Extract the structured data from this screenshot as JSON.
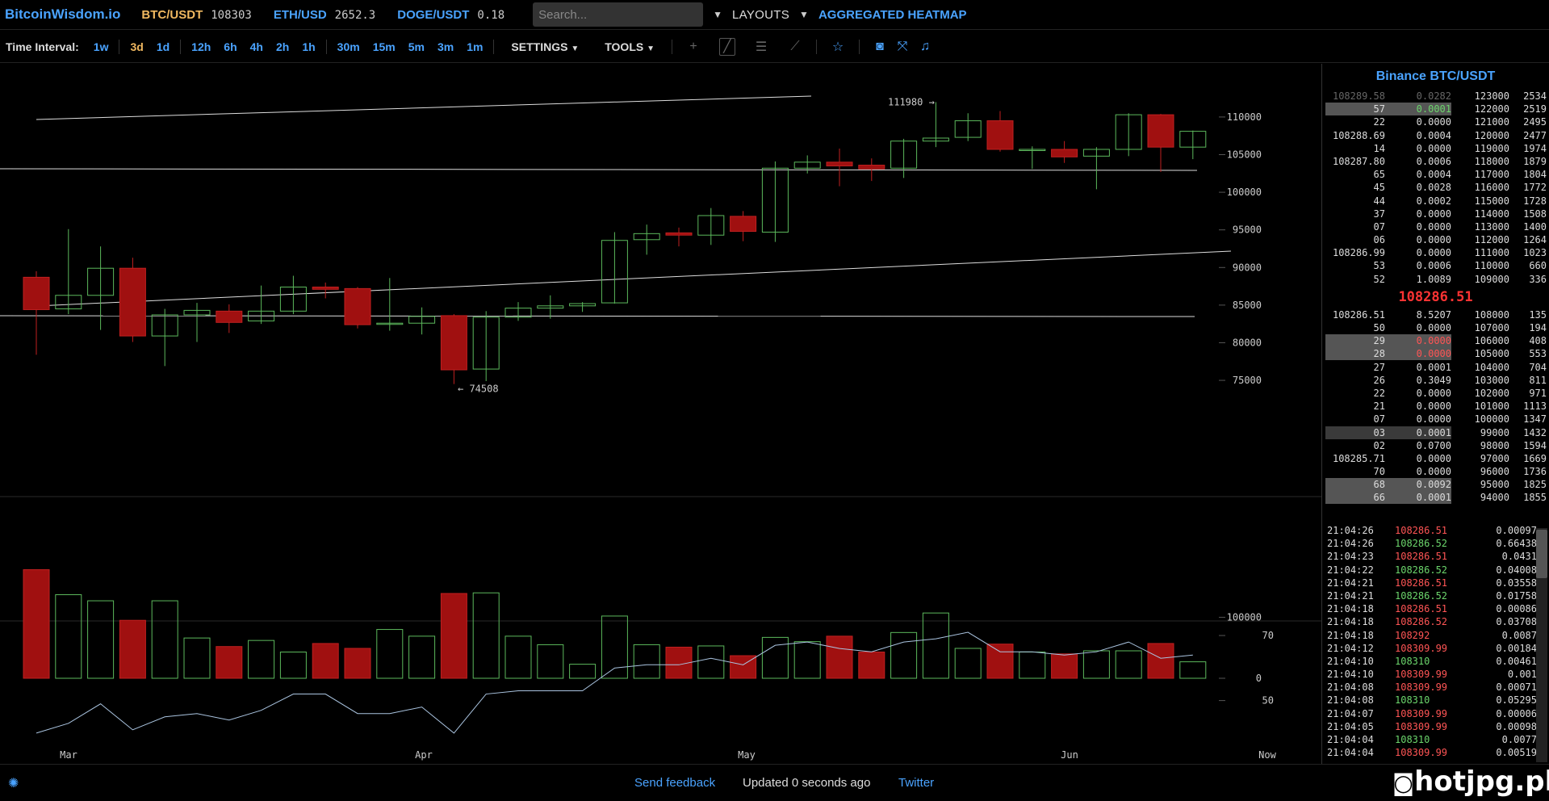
{
  "header": {
    "logo": "BitcoinWisdom.io",
    "tickers": [
      {
        "pair": "BTC/USDT",
        "price": "108303",
        "active": true
      },
      {
        "pair": "ETH/USD",
        "price": "2652.3",
        "active": false
      },
      {
        "pair": "DOGE/USDT",
        "price": "0.18",
        "active": false
      }
    ],
    "search_placeholder": "Search...",
    "layouts_label": "LAYOUTS",
    "heatmap_label": "AGGREGATED HEATMAP"
  },
  "toolbar": {
    "time_interval_label": "Time Interval:",
    "intervals_group1": [
      "1w",
      "3d",
      "1d"
    ],
    "intervals_group2": [
      "12h",
      "6h",
      "4h",
      "2h",
      "1h"
    ],
    "intervals_group3": [
      "30m",
      "15m",
      "5m",
      "3m",
      "1m"
    ],
    "active_interval": "3d",
    "settings_label": "SETTINGS",
    "tools_label": "TOOLS",
    "icons": [
      "crosshair-icon",
      "trendline-icon",
      "horizontal-lines-icon",
      "fan-icon",
      "star-icon",
      "camera-icon",
      "fullscreen-icon",
      "bell-icon"
    ]
  },
  "chart_data": [
    {
      "type": "candlestick",
      "title": "",
      "y_ticks": [
        "110000",
        "105000",
        "100000",
        "95000",
        "90000",
        "85000",
        "80000",
        "75000"
      ],
      "ylim": [
        72000,
        116000
      ],
      "x_ticks": [
        "Mar",
        "Apr",
        "May",
        "Jun",
        "Now"
      ],
      "annotations": [
        {
          "text": "111980 →",
          "value": 111980
        },
        {
          "text": "← 74508",
          "value": 74508
        }
      ],
      "candles": [
        {
          "o": 88700,
          "h": 89500,
          "l": 78400,
          "c": 84400
        },
        {
          "o": 84500,
          "h": 95100,
          "l": 83800,
          "c": 86300
        },
        {
          "o": 86300,
          "h": 92800,
          "l": 81700,
          "c": 89900
        },
        {
          "o": 89900,
          "h": 91300,
          "l": 80100,
          "c": 80900
        },
        {
          "o": 80900,
          "h": 84500,
          "l": 76900,
          "c": 83700
        },
        {
          "o": 83700,
          "h": 85300,
          "l": 80100,
          "c": 84300
        },
        {
          "o": 84200,
          "h": 85100,
          "l": 81300,
          "c": 82700
        },
        {
          "o": 82900,
          "h": 87600,
          "l": 82500,
          "c": 84200
        },
        {
          "o": 84200,
          "h": 88900,
          "l": 83800,
          "c": 87400
        },
        {
          "o": 87400,
          "h": 88000,
          "l": 85900,
          "c": 87100
        },
        {
          "o": 87200,
          "h": 87400,
          "l": 81900,
          "c": 82400
        },
        {
          "o": 82500,
          "h": 88600,
          "l": 81600,
          "c": 82600
        },
        {
          "o": 82600,
          "h": 84700,
          "l": 81100,
          "c": 83500
        },
        {
          "o": 83600,
          "h": 83800,
          "l": 74508,
          "c": 76400
        },
        {
          "o": 76500,
          "h": 84200,
          "l": 74900,
          "c": 83400
        },
        {
          "o": 83400,
          "h": 85400,
          "l": 82900,
          "c": 84600
        },
        {
          "o": 84600,
          "h": 86300,
          "l": 83200,
          "c": 84900
        },
        {
          "o": 84900,
          "h": 85400,
          "l": 84100,
          "c": 85200
        },
        {
          "o": 85300,
          "h": 94700,
          "l": 85200,
          "c": 93600
        },
        {
          "o": 93700,
          "h": 95700,
          "l": 91700,
          "c": 94500
        },
        {
          "o": 94600,
          "h": 95300,
          "l": 92800,
          "c": 94300
        },
        {
          "o": 94300,
          "h": 97900,
          "l": 93000,
          "c": 96900
        },
        {
          "o": 96800,
          "h": 97500,
          "l": 93500,
          "c": 94800
        },
        {
          "o": 94700,
          "h": 104100,
          "l": 93400,
          "c": 103200
        },
        {
          "o": 103200,
          "h": 104900,
          "l": 102500,
          "c": 104000
        },
        {
          "o": 104000,
          "h": 105800,
          "l": 100800,
          "c": 103500
        },
        {
          "o": 103600,
          "h": 104500,
          "l": 101500,
          "c": 103100
        },
        {
          "o": 103200,
          "h": 107100,
          "l": 101900,
          "c": 106800
        },
        {
          "o": 106800,
          "h": 111980,
          "l": 106000,
          "c": 107200
        },
        {
          "o": 107300,
          "h": 110500,
          "l": 106800,
          "c": 109500
        },
        {
          "o": 109500,
          "h": 110800,
          "l": 105400,
          "c": 105700
        },
        {
          "o": 105700,
          "h": 106100,
          "l": 103100,
          "c": 105700
        },
        {
          "o": 105700,
          "h": 106800,
          "l": 103900,
          "c": 104700
        },
        {
          "o": 104800,
          "h": 106000,
          "l": 100400,
          "c": 105700
        },
        {
          "o": 105700,
          "h": 110500,
          "l": 104800,
          "c": 110300
        },
        {
          "o": 110300,
          "h": 110400,
          "l": 102700,
          "c": 106000
        },
        {
          "o": 106000,
          "h": 108200,
          "l": 104400,
          "c": 108100
        }
      ],
      "volume_ticks": [
        "100000",
        "0"
      ],
      "volume_ylim": [
        0,
        180000
      ],
      "volumes": [
        178000,
        137000,
        127000,
        95000,
        127000,
        66000,
        52000,
        62000,
        43000,
        57000,
        49000,
        80000,
        69000,
        139000,
        140000,
        69000,
        55000,
        23000,
        102000,
        55000,
        51000,
        53000,
        37000,
        67000,
        60000,
        69000,
        43000,
        75000,
        107000,
        49000,
        56000,
        43000,
        40000,
        45000,
        45000,
        57000,
        27000
      ],
      "indicator_ticks": [
        "70",
        "50"
      ],
      "indicator_ylim": [
        36,
        72
      ],
      "indicator": [
        40,
        43,
        49,
        41,
        45,
        46,
        44,
        47,
        52,
        52,
        46,
        46,
        48,
        40,
        52,
        53,
        53,
        53,
        60,
        61,
        61,
        63,
        61,
        67,
        68,
        66,
        65,
        68,
        69,
        71,
        65,
        65,
        64,
        65,
        68,
        63,
        64
      ]
    }
  ],
  "orderbook": {
    "title": "Binance BTC/USDT",
    "asks": [
      {
        "price": "108289.58",
        "amount": "0.0282",
        "level": "123000",
        "total": "2534",
        "dim": true
      },
      {
        "price": "57",
        "amount": "0.0001",
        "level": "122000",
        "total": "2519",
        "hl": true,
        "amt_color": "green"
      },
      {
        "price": "22",
        "amount": "0.0000",
        "level": "121000",
        "total": "2495"
      },
      {
        "price": "108288.69",
        "amount": "0.0004",
        "level": "120000",
        "total": "2477"
      },
      {
        "price": "14",
        "amount": "0.0000",
        "level": "119000",
        "total": "1974"
      },
      {
        "price": "108287.80",
        "amount": "0.0006",
        "level": "118000",
        "total": "1879"
      },
      {
        "price": "65",
        "amount": "0.0004",
        "level": "117000",
        "total": "1804"
      },
      {
        "price": "45",
        "amount": "0.0028",
        "level": "116000",
        "total": "1772"
      },
      {
        "price": "44",
        "amount": "0.0002",
        "level": "115000",
        "total": "1728"
      },
      {
        "price": "37",
        "amount": "0.0000",
        "level": "114000",
        "total": "1508"
      },
      {
        "price": "07",
        "amount": "0.0000",
        "level": "113000",
        "total": "1400"
      },
      {
        "price": "06",
        "amount": "0.0000",
        "level": "112000",
        "total": "1264"
      },
      {
        "price": "108286.99",
        "amount": "0.0000",
        "level": "111000",
        "total": "1023"
      },
      {
        "price": "53",
        "amount": "0.0006",
        "level": "110000",
        "total": "660"
      },
      {
        "price": "52",
        "amount": "1.0089",
        "level": "109000",
        "total": "336"
      }
    ],
    "mid_price": "108286.51",
    "bids": [
      {
        "price": "108286.51",
        "amount": "8.5207",
        "level": "108000",
        "total": "135"
      },
      {
        "price": "50",
        "amount": "0.0000",
        "level": "107000",
        "total": "194"
      },
      {
        "price": "29",
        "amount": "0.0000",
        "level": "106000",
        "total": "408",
        "hl": true,
        "amt_color": "red"
      },
      {
        "price": "28",
        "amount": "0.0000",
        "level": "105000",
        "total": "553",
        "hl": true,
        "amt_color": "red"
      },
      {
        "price": "27",
        "amount": "0.0001",
        "level": "104000",
        "total": "704"
      },
      {
        "price": "26",
        "amount": "0.3049",
        "level": "103000",
        "total": "811"
      },
      {
        "price": "22",
        "amount": "0.0000",
        "level": "102000",
        "total": "971"
      },
      {
        "price": "21",
        "amount": "0.0000",
        "level": "101000",
        "total": "1113"
      },
      {
        "price": "07",
        "amount": "0.0000",
        "level": "100000",
        "total": "1347"
      },
      {
        "price": "03",
        "amount": "0.0001",
        "level": "99000",
        "total": "1432",
        "hl": true,
        "dark": true
      },
      {
        "price": "02",
        "amount": "0.0700",
        "level": "98000",
        "total": "1594"
      },
      {
        "price": "108285.71",
        "amount": "0.0000",
        "level": "97000",
        "total": "1669"
      },
      {
        "price": "70",
        "amount": "0.0000",
        "level": "96000",
        "total": "1736"
      },
      {
        "price": "68",
        "amount": "0.0092",
        "level": "95000",
        "total": "1825",
        "hl": true
      },
      {
        "price": "66",
        "amount": "0.0001",
        "level": "94000",
        "total": "1855",
        "hl": true
      }
    ]
  },
  "trades": [
    {
      "time": "21:04:26",
      "price": "108286.51",
      "side": "sell",
      "amount": "0.00097"
    },
    {
      "time": "21:04:26",
      "price": "108286.52",
      "side": "buy",
      "amount": "0.66438"
    },
    {
      "time": "21:04:23",
      "price": "108286.51",
      "side": "sell",
      "amount": "0.0431"
    },
    {
      "time": "21:04:22",
      "price": "108286.52",
      "side": "buy",
      "amount": "0.04008"
    },
    {
      "time": "21:04:21",
      "price": "108286.51",
      "side": "sell",
      "amount": "0.03558"
    },
    {
      "time": "21:04:21",
      "price": "108286.52",
      "side": "buy",
      "amount": "0.01758"
    },
    {
      "time": "21:04:18",
      "price": "108286.51",
      "side": "sell",
      "amount": "0.00086"
    },
    {
      "time": "21:04:18",
      "price": "108286.52",
      "side": "sell",
      "amount": "0.03708"
    },
    {
      "time": "21:04:18",
      "price": "108292",
      "side": "sell",
      "amount": "0.0087"
    },
    {
      "time": "21:04:12",
      "price": "108309.99",
      "side": "sell",
      "amount": "0.00184"
    },
    {
      "time": "21:04:10",
      "price": "108310",
      "side": "buy",
      "amount": "0.00461"
    },
    {
      "time": "21:04:10",
      "price": "108309.99",
      "side": "sell",
      "amount": "0.001"
    },
    {
      "time": "21:04:08",
      "price": "108309.99",
      "side": "sell",
      "amount": "0.00071"
    },
    {
      "time": "21:04:08",
      "price": "108310",
      "side": "buy",
      "amount": "0.05295"
    },
    {
      "time": "21:04:07",
      "price": "108309.99",
      "side": "sell",
      "amount": "0.00006"
    },
    {
      "time": "21:04:05",
      "price": "108309.99",
      "side": "sell",
      "amount": "0.00098"
    },
    {
      "time": "21:04:04",
      "price": "108310",
      "side": "buy",
      "amount": "0.0077"
    },
    {
      "time": "21:04:04",
      "price": "108309.99",
      "side": "sell",
      "amount": "0.00519"
    }
  ],
  "footer": {
    "feedback_label": "Send feedback",
    "updated_text": "Updated 0 seconds ago",
    "twitter_label": "Twitter"
  },
  "watermark": "hotjpg.pl",
  "colors": {
    "accent": "#4aa3ff",
    "active": "#f0b860",
    "up": "#5cb85c",
    "down": "#a01010"
  }
}
